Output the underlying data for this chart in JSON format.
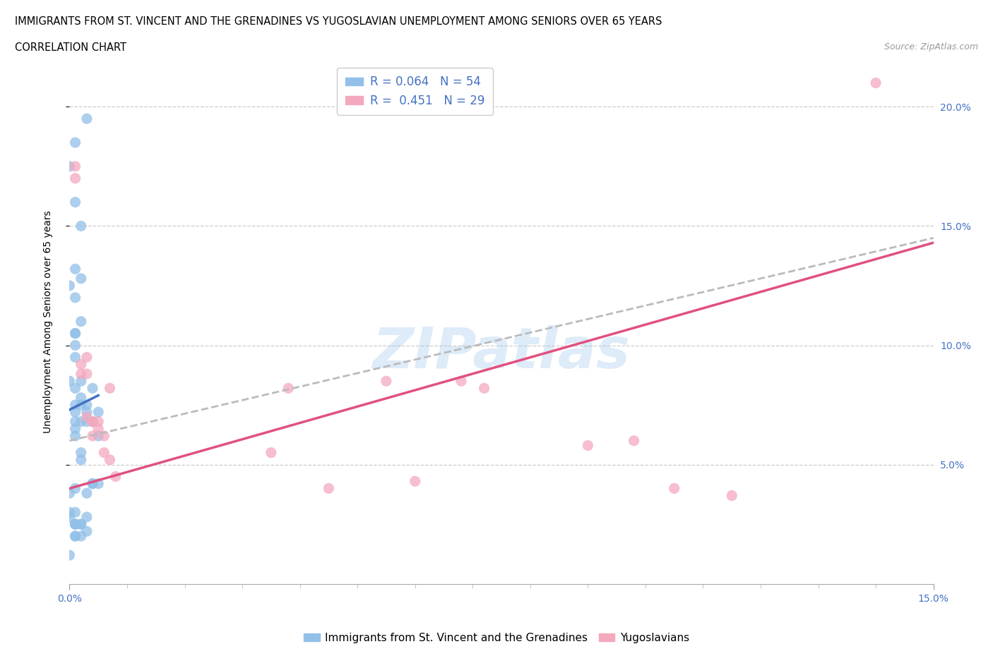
{
  "title_line1": "IMMIGRANTS FROM ST. VINCENT AND THE GRENADINES VS YUGOSLAVIAN UNEMPLOYMENT AMONG SENIORS OVER 65 YEARS",
  "title_line2": "CORRELATION CHART",
  "source": "Source: ZipAtlas.com",
  "ylabel": "Unemployment Among Seniors over 65 years",
  "xlim": [
    0.0,
    0.15
  ],
  "ylim": [
    0.0,
    0.22
  ],
  "xticks_major": [
    0.0,
    0.15
  ],
  "xticks_minor": [
    0.0,
    0.01,
    0.02,
    0.03,
    0.04,
    0.05,
    0.06,
    0.07,
    0.08,
    0.09,
    0.1,
    0.11,
    0.12,
    0.13,
    0.14,
    0.15
  ],
  "xticklabels_major": [
    "0.0%",
    "15.0%"
  ],
  "yticks_right": [
    0.05,
    0.1,
    0.15,
    0.2
  ],
  "yticklabels_right": [
    "5.0%",
    "10.0%",
    "15.0%",
    "20.0%"
  ],
  "watermark": "ZIPatlas",
  "legend_r1": "R = 0.064",
  "legend_n1": "N = 54",
  "legend_r2": "R =  0.451",
  "legend_n2": "N = 29",
  "color_blue": "#92C0E8",
  "color_pink": "#F4A8BE",
  "color_blue_line": "#4472C4",
  "color_pink_line": "#E05080",
  "color_dashed": "#BBBBBB",
  "blue_x": [
    0.002,
    0.001,
    0.003,
    0.0,
    0.001,
    0.002,
    0.003,
    0.001,
    0.0,
    0.001,
    0.001,
    0.0,
    0.001,
    0.002,
    0.001,
    0.001,
    0.002,
    0.002,
    0.004,
    0.001,
    0.003,
    0.002,
    0.003,
    0.004,
    0.005,
    0.003,
    0.005,
    0.004,
    0.0,
    0.001,
    0.001,
    0.001,
    0.002,
    0.001,
    0.002,
    0.003,
    0.002,
    0.001,
    0.001,
    0.001,
    0.001,
    0.001,
    0.002,
    0.001,
    0.002,
    0.005,
    0.002,
    0.004,
    0.0,
    0.003,
    0.001,
    0.0,
    0.0,
    0.001
  ],
  "blue_y": [
    0.085,
    0.185,
    0.195,
    0.175,
    0.16,
    0.15,
    0.075,
    0.12,
    0.125,
    0.095,
    0.105,
    0.085,
    0.1,
    0.055,
    0.065,
    0.072,
    0.078,
    0.075,
    0.082,
    0.075,
    0.072,
    0.068,
    0.068,
    0.068,
    0.072,
    0.038,
    0.042,
    0.042,
    0.038,
    0.04,
    0.03,
    0.025,
    0.025,
    0.02,
    0.02,
    0.022,
    0.025,
    0.025,
    0.025,
    0.068,
    0.082,
    0.105,
    0.11,
    0.132,
    0.128,
    0.062,
    0.052,
    0.042,
    0.03,
    0.028,
    0.02,
    0.028,
    0.012,
    0.062
  ],
  "pink_x": [
    0.001,
    0.001,
    0.002,
    0.002,
    0.003,
    0.003,
    0.003,
    0.004,
    0.004,
    0.004,
    0.005,
    0.005,
    0.006,
    0.006,
    0.007,
    0.007,
    0.008,
    0.035,
    0.038,
    0.045,
    0.055,
    0.06,
    0.068,
    0.072,
    0.09,
    0.098,
    0.105,
    0.115,
    0.14
  ],
  "pink_y": [
    0.175,
    0.17,
    0.088,
    0.092,
    0.088,
    0.095,
    0.07,
    0.068,
    0.062,
    0.068,
    0.065,
    0.068,
    0.062,
    0.055,
    0.052,
    0.082,
    0.045,
    0.055,
    0.082,
    0.04,
    0.085,
    0.043,
    0.085,
    0.082,
    0.058,
    0.06,
    0.04,
    0.037,
    0.21
  ],
  "blue_trend_x": [
    0.0,
    0.005
  ],
  "blue_trend_y": [
    0.073,
    0.079
  ],
  "pink_trend_x": [
    0.0,
    0.15
  ],
  "pink_trend_y": [
    0.04,
    0.143
  ],
  "dashed_trend_x": [
    0.0,
    0.15
  ],
  "dashed_trend_y": [
    0.06,
    0.145
  ]
}
